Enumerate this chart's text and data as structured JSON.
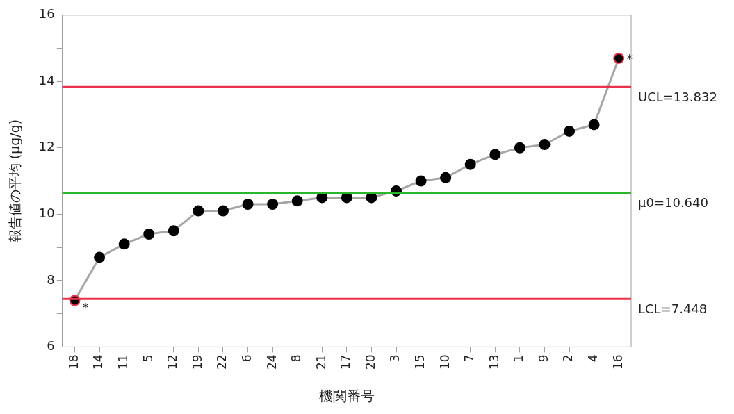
{
  "chart_data": {
    "type": "line",
    "xlabel": "機関番号",
    "ylabel": "報告値の平均 (μg/g)",
    "categories": [
      "18",
      "14",
      "11",
      "5",
      "12",
      "19",
      "22",
      "6",
      "24",
      "8",
      "21",
      "17",
      "20",
      "3",
      "15",
      "10",
      "7",
      "13",
      "1",
      "9",
      "2",
      "4",
      "16"
    ],
    "series": [
      {
        "color": "#a6a6a6",
        "colors": [
          "#e8334a",
          "#000000",
          "#000000",
          "#000000",
          "#000000",
          "#000000",
          "#000000",
          "#000000",
          "#000000",
          "#000000",
          "#000000",
          "#000000",
          "#000000",
          "#000000",
          "#000000",
          "#000000",
          "#000000",
          "#000000",
          "#000000",
          "#000000",
          "#000000",
          "#000000",
          "#e8334a"
        ],
        "values": [
          7.4,
          8.7,
          9.1,
          9.4,
          9.5,
          10.1,
          10.1,
          10.3,
          10.3,
          10.4,
          10.5,
          10.5,
          10.5,
          10.7,
          11.0,
          11.1,
          11.5,
          11.8,
          12.0,
          12.1,
          12.5,
          12.7,
          14.7
        ]
      }
    ],
    "ylim": [
      6,
      16
    ],
    "yticks": [
      6,
      {
        "value": 7,
        "label": null
      },
      8,
      {
        "value": 9,
        "label": null
      },
      10,
      {
        "value": 11,
        "label": null
      },
      12,
      {
        "value": 13,
        "label": null
      },
      14,
      {
        "value": 15,
        "label": null
      },
      16
    ],
    "marker": "circle",
    "grid": false,
    "legend": false,
    "ref_lines": [
      {
        "axis": "y",
        "value": 13.832,
        "label": "UCL=13.832",
        "color": "#e8334a"
      },
      {
        "axis": "y",
        "value": 10.64,
        "label": "μ0=10.640",
        "color": "#2db52d"
      },
      {
        "axis": "y",
        "value": 7.448,
        "label": "LCL=7.448",
        "color": "#e8334a"
      }
    ],
    "annotations": [
      {
        "text": "*",
        "x": "18",
        "y": 7.4
      },
      {
        "text": "*",
        "x": "16",
        "y": 14.7
      }
    ]
  }
}
